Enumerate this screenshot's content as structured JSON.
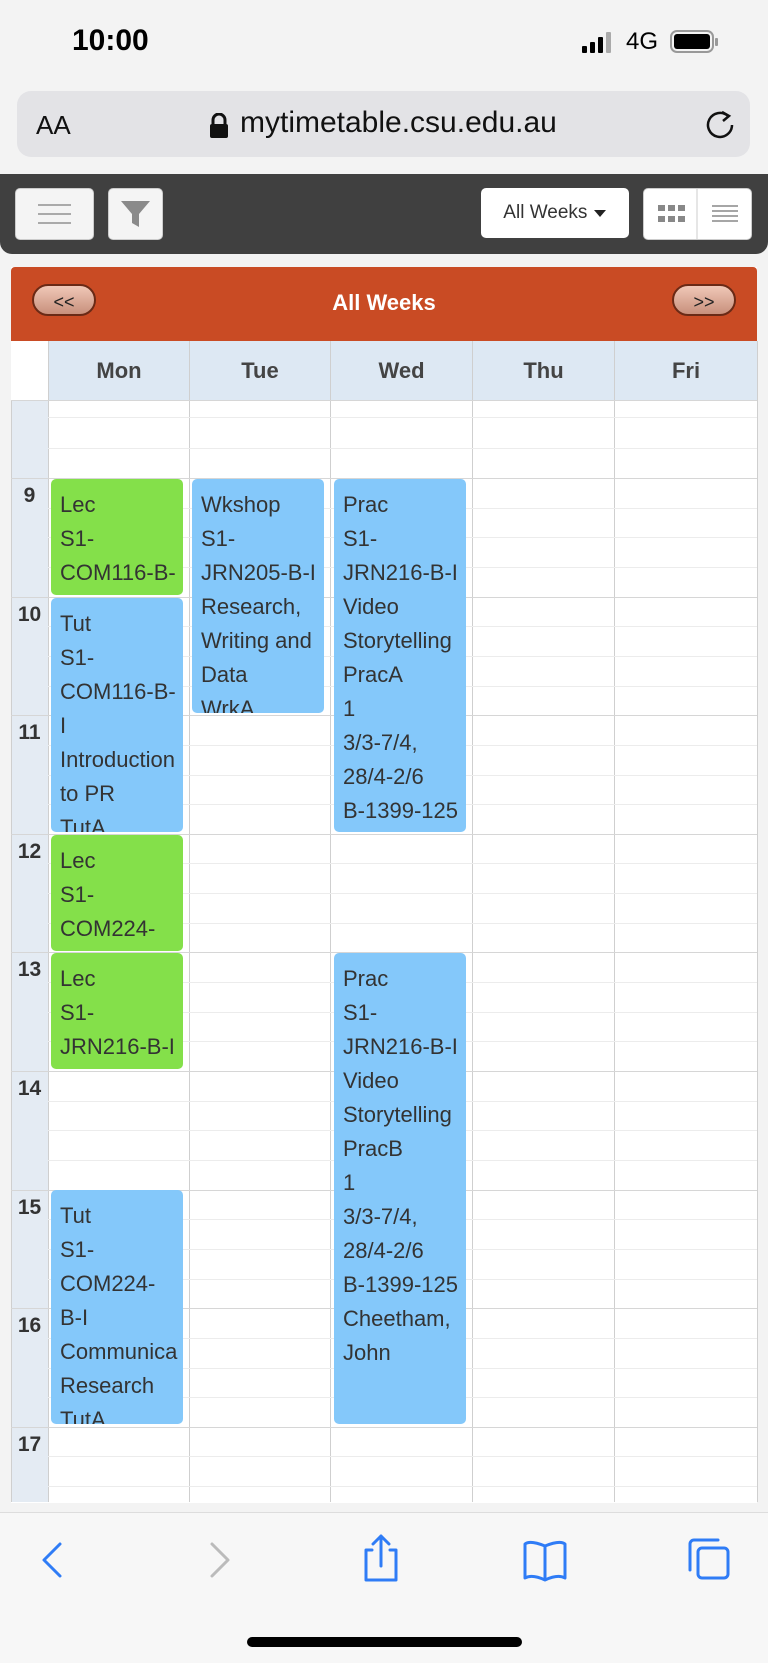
{
  "status": {
    "time": "10:00",
    "network": "4G"
  },
  "browser": {
    "text_size": "AA",
    "url": "mytimetable.csu.edu.au"
  },
  "toolbar": {
    "weeks_select": "All Weeks"
  },
  "header": {
    "prev": "<<",
    "title": "All Weeks",
    "next": ">>"
  },
  "days": [
    "Mon",
    "Tue",
    "Wed",
    "Thu",
    "Fri"
  ],
  "hours": [
    "9",
    "10",
    "11",
    "12",
    "13",
    "14",
    "15",
    "16",
    "17"
  ],
  "events": [
    {
      "lines": [
        "Lec",
        "S1-",
        "COM116-B-"
      ]
    },
    {
      "lines": [
        "Tut",
        "S1-",
        "COM116-B-",
        "I",
        "Introduction",
        "to PR",
        "TutA"
      ]
    },
    {
      "lines": [
        "Wkshop",
        "S1-",
        "JRN205-B-I",
        "Research,",
        "Writing and",
        "Data",
        "WrkA"
      ]
    },
    {
      "lines": [
        "Prac",
        "S1-",
        "JRN216-B-I",
        "Video",
        "Storytelling",
        "PracA",
        "1",
        "3/3-7/4,",
        "28/4-2/6",
        "B-1399-125"
      ]
    },
    {
      "lines": [
        "Lec",
        "S1-",
        "COM224-"
      ]
    },
    {
      "lines": [
        "Lec",
        "S1-",
        "JRN216-B-I"
      ]
    },
    {
      "lines": [
        "Prac",
        "S1-",
        "JRN216-B-I",
        "Video",
        "Storytelling",
        "PracB",
        "1",
        "3/3-7/4,",
        "28/4-2/6",
        "B-1399-125",
        "Cheetham,",
        "John"
      ]
    },
    {
      "lines": [
        "Tut",
        "S1-",
        "COM224-",
        "B-I",
        "Communica",
        "Research",
        "TutA"
      ]
    }
  ]
}
